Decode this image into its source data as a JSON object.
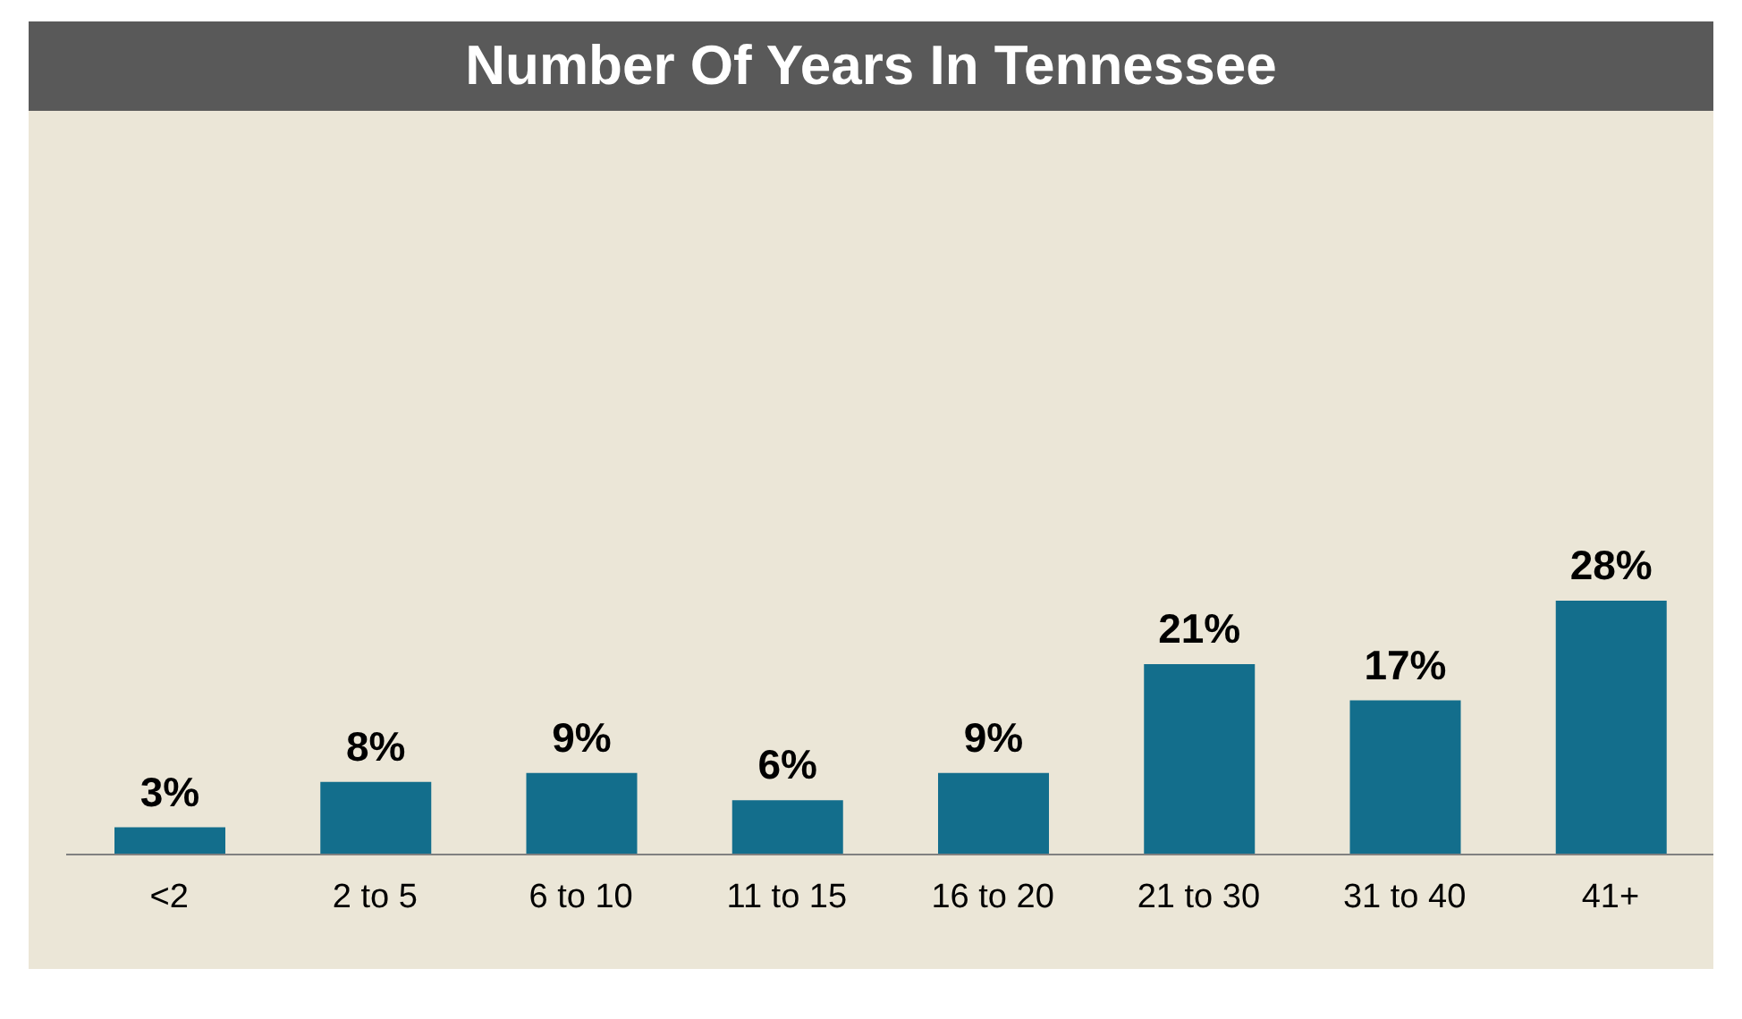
{
  "chart_data": {
    "type": "bar",
    "title": "Number Of Years In Tennessee",
    "categories": [
      "<2",
      "2 to 5",
      "6 to 10",
      "11 to 15",
      "16 to 20",
      "21 to 30",
      "31 to 40",
      "41+"
    ],
    "values": [
      3,
      8,
      9,
      6,
      9,
      21,
      17,
      28
    ],
    "color": "#136e8c",
    "data_labels": true,
    "value_labels": [
      "3%",
      "8%",
      "9%",
      "6%",
      "9%",
      "21%",
      "17%",
      "28%"
    ]
  }
}
